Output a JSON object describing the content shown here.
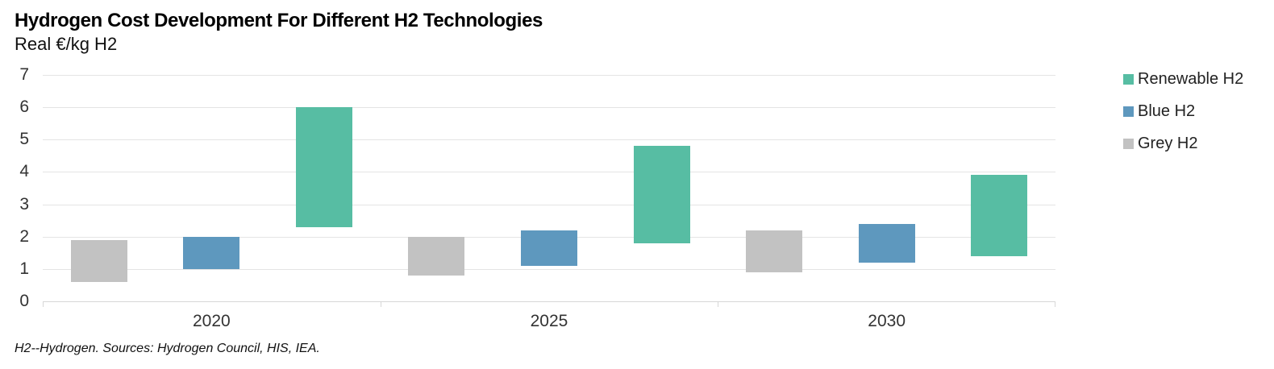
{
  "header": {
    "title": "Hydrogen Cost Development For Different H2 Technologies",
    "subtitle": "Real €/kg H2"
  },
  "footnote": "H2--Hydrogen. Sources: Hydrogen Council, HIS, IEA.",
  "colors": {
    "renewable_h2": "#57BDA3",
    "blue_h2": "#5E98BE",
    "grey_h2": "#C2C2C2",
    "gridline": "#E4E4E4",
    "axis_text": "#333333"
  },
  "legend": [
    {
      "label": "Renewable H2",
      "color": "#57BDA3"
    },
    {
      "label": "Blue H2",
      "color": "#5E98BE"
    },
    {
      "label": "Grey H2",
      "color": "#C2C2C2"
    }
  ],
  "chart_data": {
    "type": "bar",
    "subtype": "floating-range-columns",
    "title": "Hydrogen Cost Development For Different H2 Technologies",
    "ylabel": "Real €/kg H2",
    "xlabel": "",
    "ylim": [
      0,
      7
    ],
    "yticks": [
      0,
      1,
      2,
      3,
      4,
      5,
      6,
      7
    ],
    "grid": true,
    "legend_position": "right",
    "categories": [
      "2020",
      "2025",
      "2030"
    ],
    "series": [
      {
        "name": "Grey H2",
        "color": "#C2C2C2",
        "ranges": [
          [
            0.6,
            1.9
          ],
          [
            0.8,
            2.0
          ],
          [
            0.9,
            2.2
          ]
        ]
      },
      {
        "name": "Blue H2",
        "color": "#5E98BE",
        "ranges": [
          [
            1.0,
            2.0
          ],
          [
            1.1,
            2.2
          ],
          [
            1.2,
            2.4
          ]
        ]
      },
      {
        "name": "Renewable H2",
        "color": "#57BDA3",
        "ranges": [
          [
            2.3,
            6.0
          ],
          [
            1.8,
            4.8
          ],
          [
            1.4,
            3.9
          ]
        ]
      }
    ]
  }
}
